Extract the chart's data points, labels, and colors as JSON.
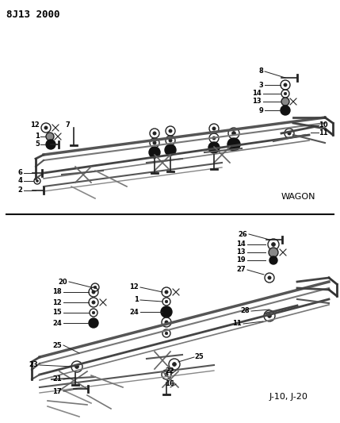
{
  "title": "8J13 2000",
  "bg_color": "#ffffff",
  "wagon_label": "WAGON",
  "j10_label": "J-10, J-20"
}
